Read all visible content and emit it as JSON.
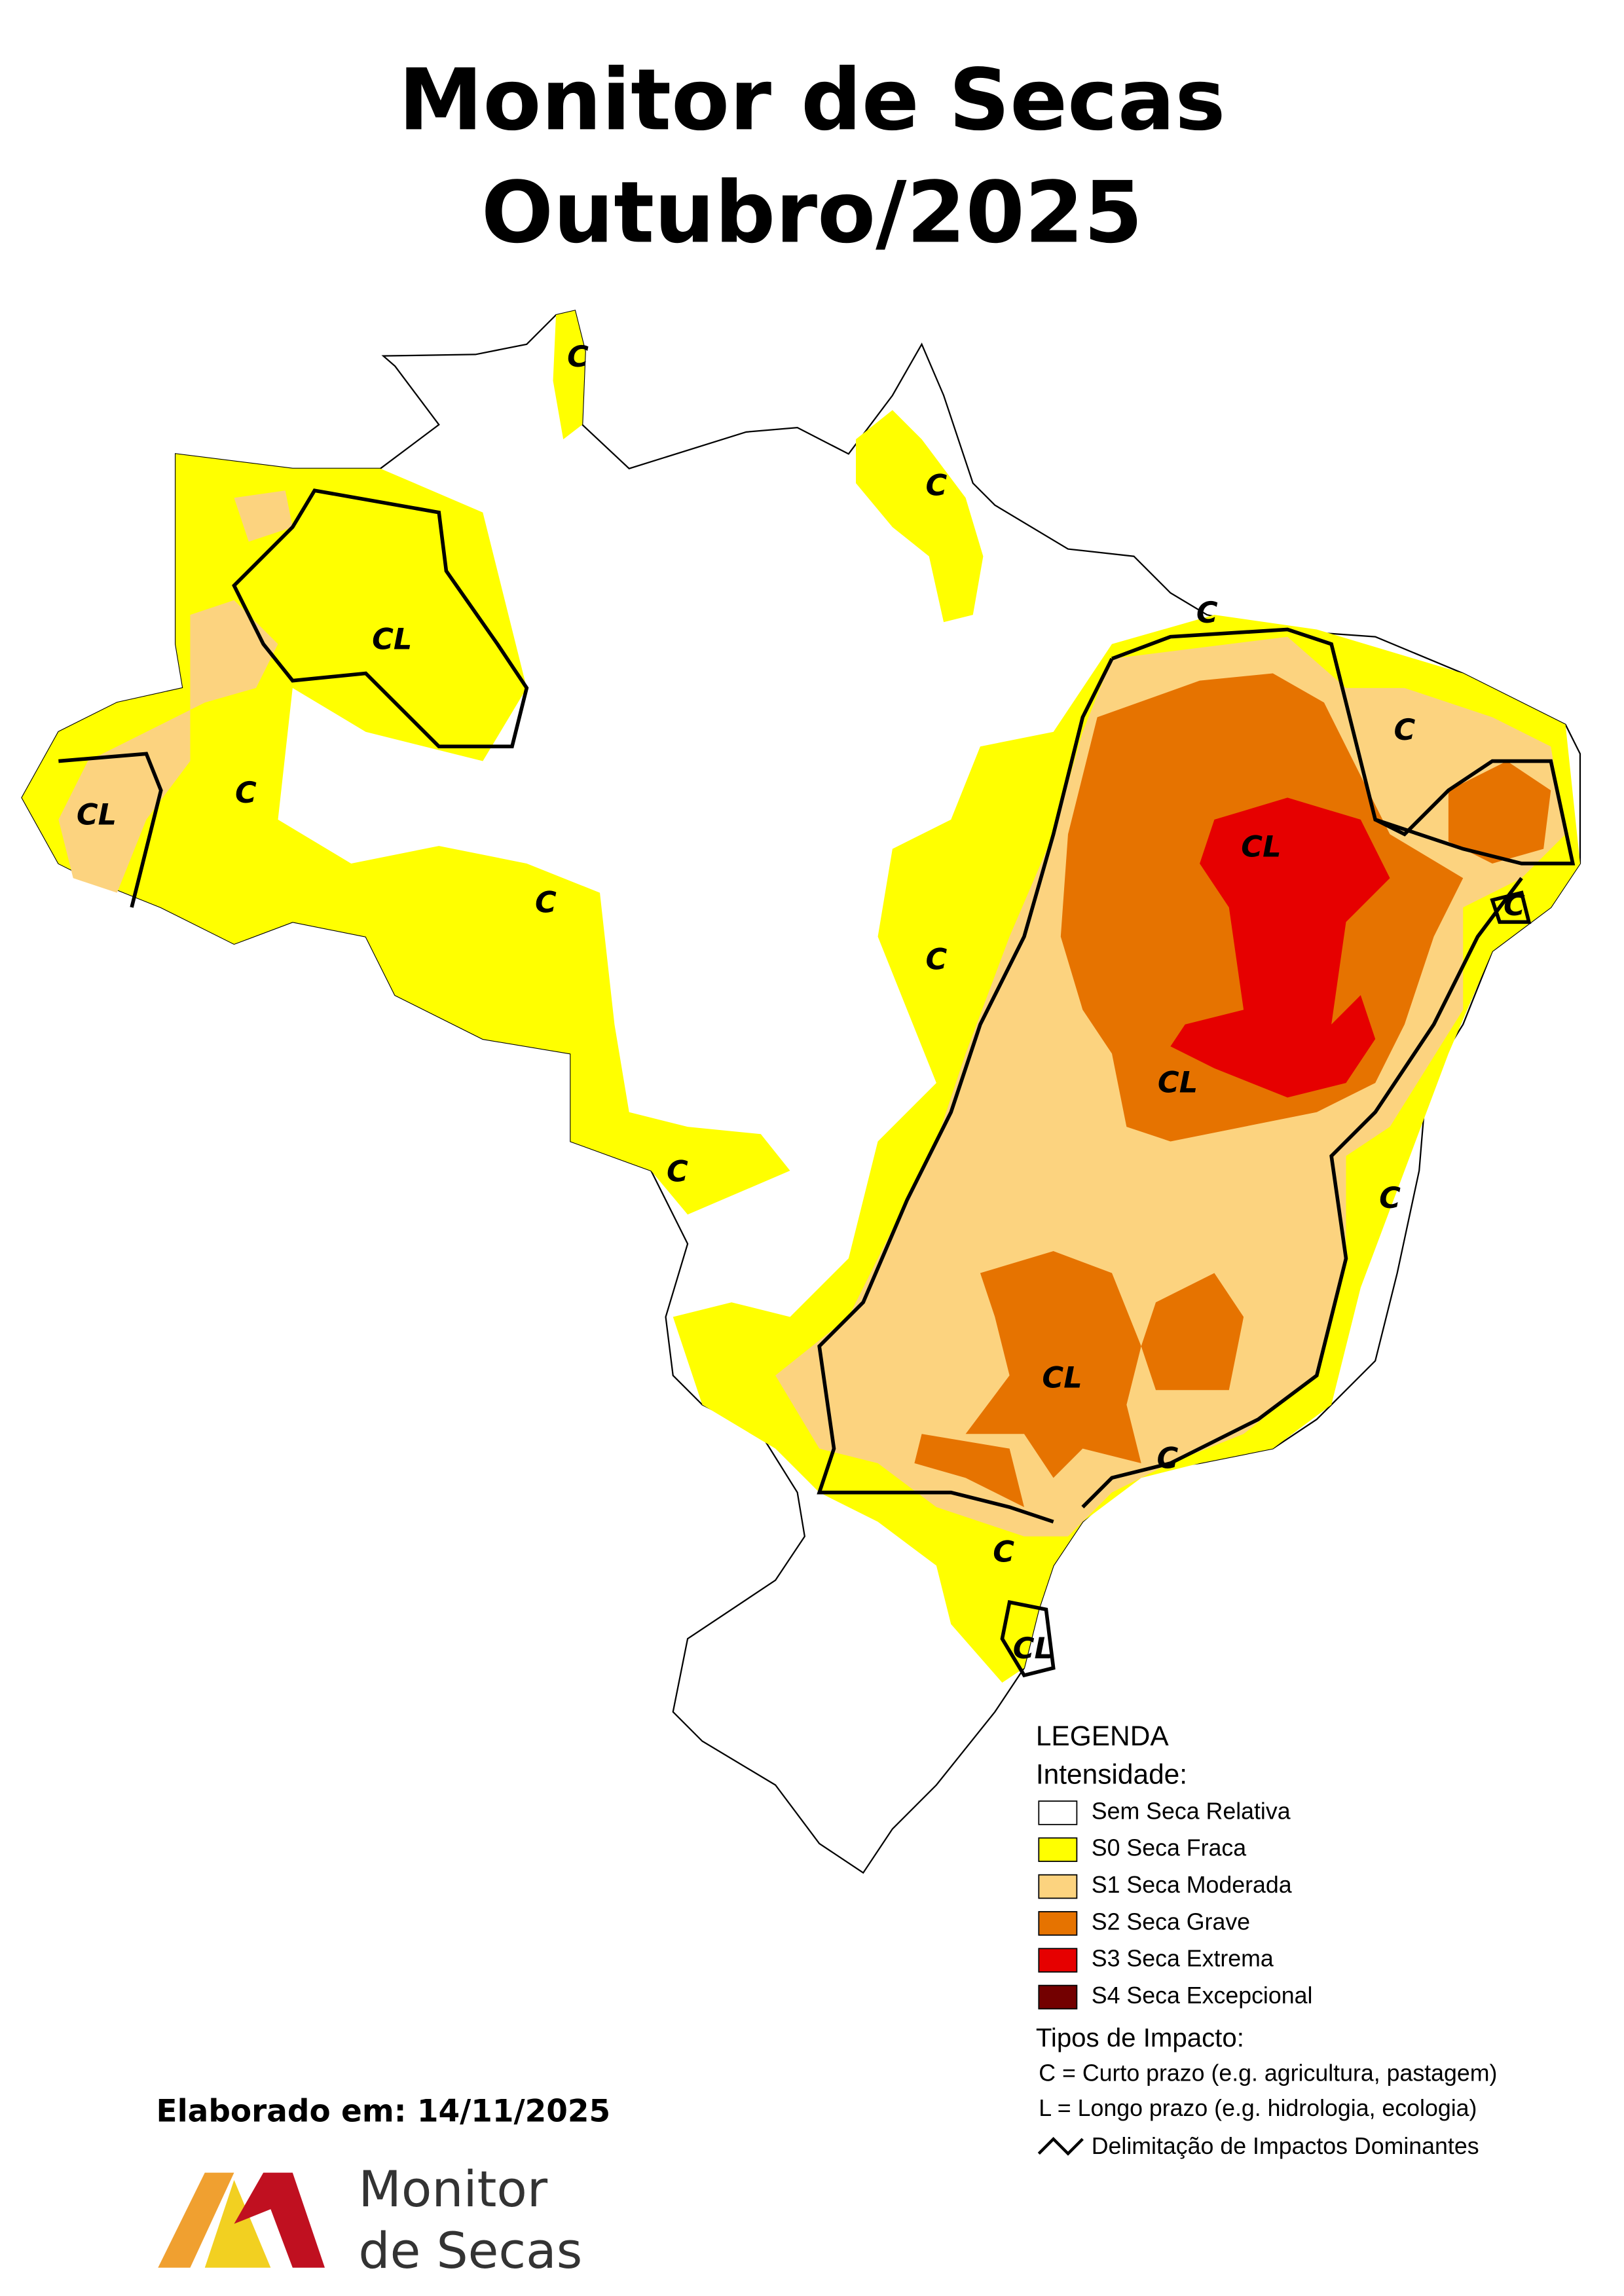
{
  "header": {
    "title_line1": "Monitor de Secas",
    "title_line2": "Outubro/2025"
  },
  "map": {
    "labels": [
      "C",
      "C",
      "CL",
      "C",
      "C",
      "CL",
      "C",
      "CL",
      "C",
      "C",
      "C",
      "CL",
      "C",
      "C",
      "CL",
      "C",
      "C",
      "CL"
    ]
  },
  "legend": {
    "title": "LEGENDA",
    "intensity_title": "Intensidade:",
    "items": [
      {
        "label": "Sem Seca Relativa",
        "color": "#ffffff"
      },
      {
        "label": "S0 Seca Fraca",
        "color": "#ffff00"
      },
      {
        "label": "S1 Seca Moderada",
        "color": "#fcd37f"
      },
      {
        "label": "S2 Seca Grave",
        "color": "#e67300"
      },
      {
        "label": "S3 Seca Extrema",
        "color": "#e60000"
      },
      {
        "label": "S4 Seca Excepcional",
        "color": "#730000"
      }
    ],
    "impact_title": "Tipos de Impacto:",
    "impact_types": [
      "C = Curto prazo (e.g. agricultura, pastagem)",
      "L = Longo prazo (e.g. hidrologia, ecologia)"
    ],
    "boundary_label": "Delimitação de Impactos Dominantes"
  },
  "footer": {
    "date": "Elaborado em: 14/11/2025",
    "logo_line1": "Monitor",
    "logo_line2": "de Secas"
  }
}
